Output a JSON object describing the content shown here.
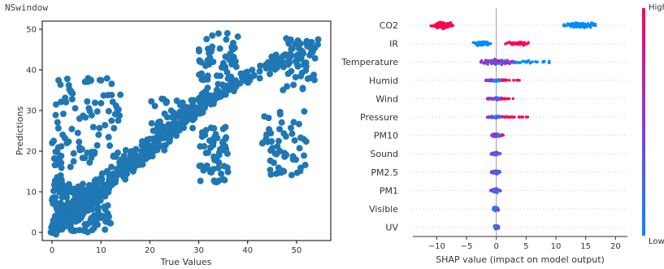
{
  "window_title": "NSwindow",
  "chart_data": [
    {
      "type": "scatter",
      "xlabel": "True Values",
      "ylabel": "Predictions",
      "xlim": [
        -2,
        57
      ],
      "ylim": [
        -2,
        52
      ],
      "x_ticks": [
        "0",
        "10",
        "20",
        "30",
        "40",
        "50"
      ],
      "y_ticks": [
        "0",
        "10",
        "20",
        "30",
        "40",
        "50"
      ],
      "color": "#1f77b4",
      "grid": false
    },
    {
      "type": "scatter",
      "subtype": "shap_beeswarm",
      "xlabel": "SHAP value (impact on model output)",
      "xlim": [
        -14,
        22
      ],
      "x_ticks": [
        "−10",
        "−5",
        "0",
        "5",
        "10",
        "15",
        "20"
      ],
      "features": [
        "CO2",
        "IR",
        "Temperature",
        "Humid",
        "Wind",
        "Pressure",
        "PM10",
        "Sound",
        "PM2.5",
        "PM1",
        "Visible",
        "UV"
      ],
      "feature_shap_ranges": [
        [
          -13,
          20
        ],
        [
          -6,
          8
        ],
        [
          -6,
          10
        ],
        [
          -2.5,
          5.5
        ],
        [
          -2,
          4
        ],
        [
          -2,
          7.5
        ],
        [
          -1,
          2
        ],
        [
          -1,
          1
        ],
        [
          -1,
          1
        ],
        [
          -1,
          1
        ],
        [
          -0.5,
          0.5
        ],
        [
          -0.3,
          0.5
        ]
      ],
      "colorbar": {
        "high_label": "High",
        "low_label": "Low",
        "high_color": "#ff0052",
        "low_color": "#008bfb"
      }
    }
  ]
}
